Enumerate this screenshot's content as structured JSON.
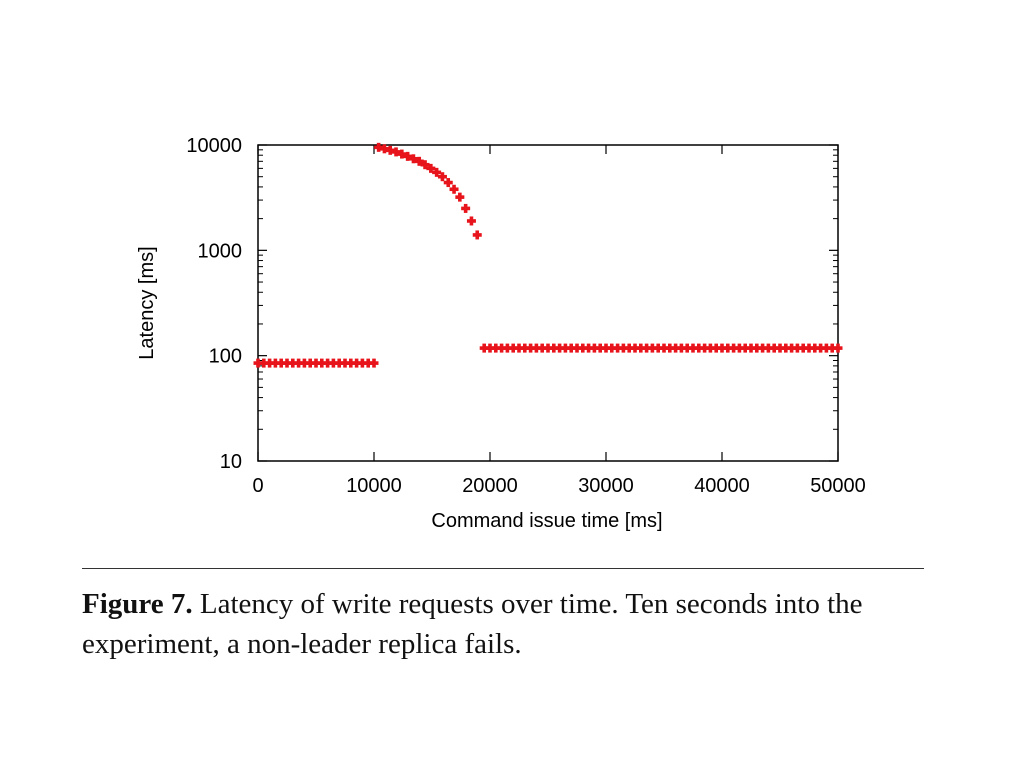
{
  "chart_data": {
    "type": "scatter",
    "title": "",
    "xlabel": "Command issue time [ms]",
    "ylabel": "Latency [ms]",
    "xlim": [
      0,
      50000
    ],
    "ylim": [
      10,
      10000
    ],
    "y_scale": "log",
    "x_ticks": [
      0,
      10000,
      20000,
      30000,
      40000,
      50000
    ],
    "x_tick_labels": [
      "0",
      "10000",
      "20000",
      "30000",
      "40000",
      "50000"
    ],
    "y_ticks": [
      10,
      100,
      1000,
      10000
    ],
    "y_tick_labels": [
      "10",
      "100",
      "1000",
      "10000"
    ],
    "grid": false,
    "legend": "none",
    "series": [
      {
        "color": "#e8141c",
        "marker": "cross",
        "points": [
          [
            0,
            85
          ],
          [
            500,
            85
          ],
          [
            1000,
            85
          ],
          [
            1500,
            85
          ],
          [
            2000,
            85
          ],
          [
            2500,
            85
          ],
          [
            3000,
            85
          ],
          [
            3500,
            85
          ],
          [
            4000,
            85
          ],
          [
            4500,
            85
          ],
          [
            5000,
            85
          ],
          [
            5500,
            85
          ],
          [
            6000,
            85
          ],
          [
            6500,
            85
          ],
          [
            7000,
            85
          ],
          [
            7500,
            85
          ],
          [
            8000,
            85
          ],
          [
            8500,
            85
          ],
          [
            9000,
            85
          ],
          [
            9500,
            85
          ],
          [
            10000,
            85
          ],
          [
            10400,
            9500
          ],
          [
            10900,
            9200
          ],
          [
            11400,
            8900
          ],
          [
            11900,
            8600
          ],
          [
            12400,
            8200
          ],
          [
            12900,
            7800
          ],
          [
            13400,
            7400
          ],
          [
            13900,
            7000
          ],
          [
            14400,
            6500
          ],
          [
            14900,
            6000
          ],
          [
            15400,
            5500
          ],
          [
            15900,
            5000
          ],
          [
            16400,
            4400
          ],
          [
            16900,
            3800
          ],
          [
            17400,
            3200
          ],
          [
            17900,
            2500
          ],
          [
            18400,
            1900
          ],
          [
            18900,
            1400
          ],
          [
            19500,
            118
          ],
          [
            20000,
            118
          ],
          [
            20500,
            118
          ],
          [
            21000,
            118
          ],
          [
            21500,
            118
          ],
          [
            22000,
            118
          ],
          [
            22500,
            118
          ],
          [
            23000,
            118
          ],
          [
            23500,
            118
          ],
          [
            24000,
            118
          ],
          [
            24500,
            118
          ],
          [
            25000,
            118
          ],
          [
            25500,
            118
          ],
          [
            26000,
            118
          ],
          [
            26500,
            118
          ],
          [
            27000,
            118
          ],
          [
            27500,
            118
          ],
          [
            28000,
            118
          ],
          [
            28500,
            118
          ],
          [
            29000,
            118
          ],
          [
            29500,
            118
          ],
          [
            30000,
            118
          ],
          [
            30500,
            118
          ],
          [
            31000,
            118
          ],
          [
            31500,
            118
          ],
          [
            32000,
            118
          ],
          [
            32500,
            118
          ],
          [
            33000,
            118
          ],
          [
            33500,
            118
          ],
          [
            34000,
            118
          ],
          [
            34500,
            118
          ],
          [
            35000,
            118
          ],
          [
            35500,
            118
          ],
          [
            36000,
            118
          ],
          [
            36500,
            118
          ],
          [
            37000,
            118
          ],
          [
            37500,
            118
          ],
          [
            38000,
            118
          ],
          [
            38500,
            118
          ],
          [
            39000,
            118
          ],
          [
            39500,
            118
          ],
          [
            40000,
            118
          ],
          [
            40500,
            118
          ],
          [
            41000,
            118
          ],
          [
            41500,
            118
          ],
          [
            42000,
            118
          ],
          [
            42500,
            118
          ],
          [
            43000,
            118
          ],
          [
            43500,
            118
          ],
          [
            44000,
            118
          ],
          [
            44500,
            118
          ],
          [
            45000,
            118
          ],
          [
            45500,
            118
          ],
          [
            46000,
            118
          ],
          [
            46500,
            118
          ],
          [
            47000,
            118
          ],
          [
            47500,
            118
          ],
          [
            48000,
            118
          ],
          [
            48500,
            118
          ],
          [
            49000,
            118
          ],
          [
            49500,
            118
          ],
          [
            50000,
            118
          ]
        ]
      }
    ]
  },
  "caption": {
    "label": "Figure 7.",
    "text": " Latency of write requests over time. Ten seconds into the experiment, a non-leader replica fails."
  }
}
